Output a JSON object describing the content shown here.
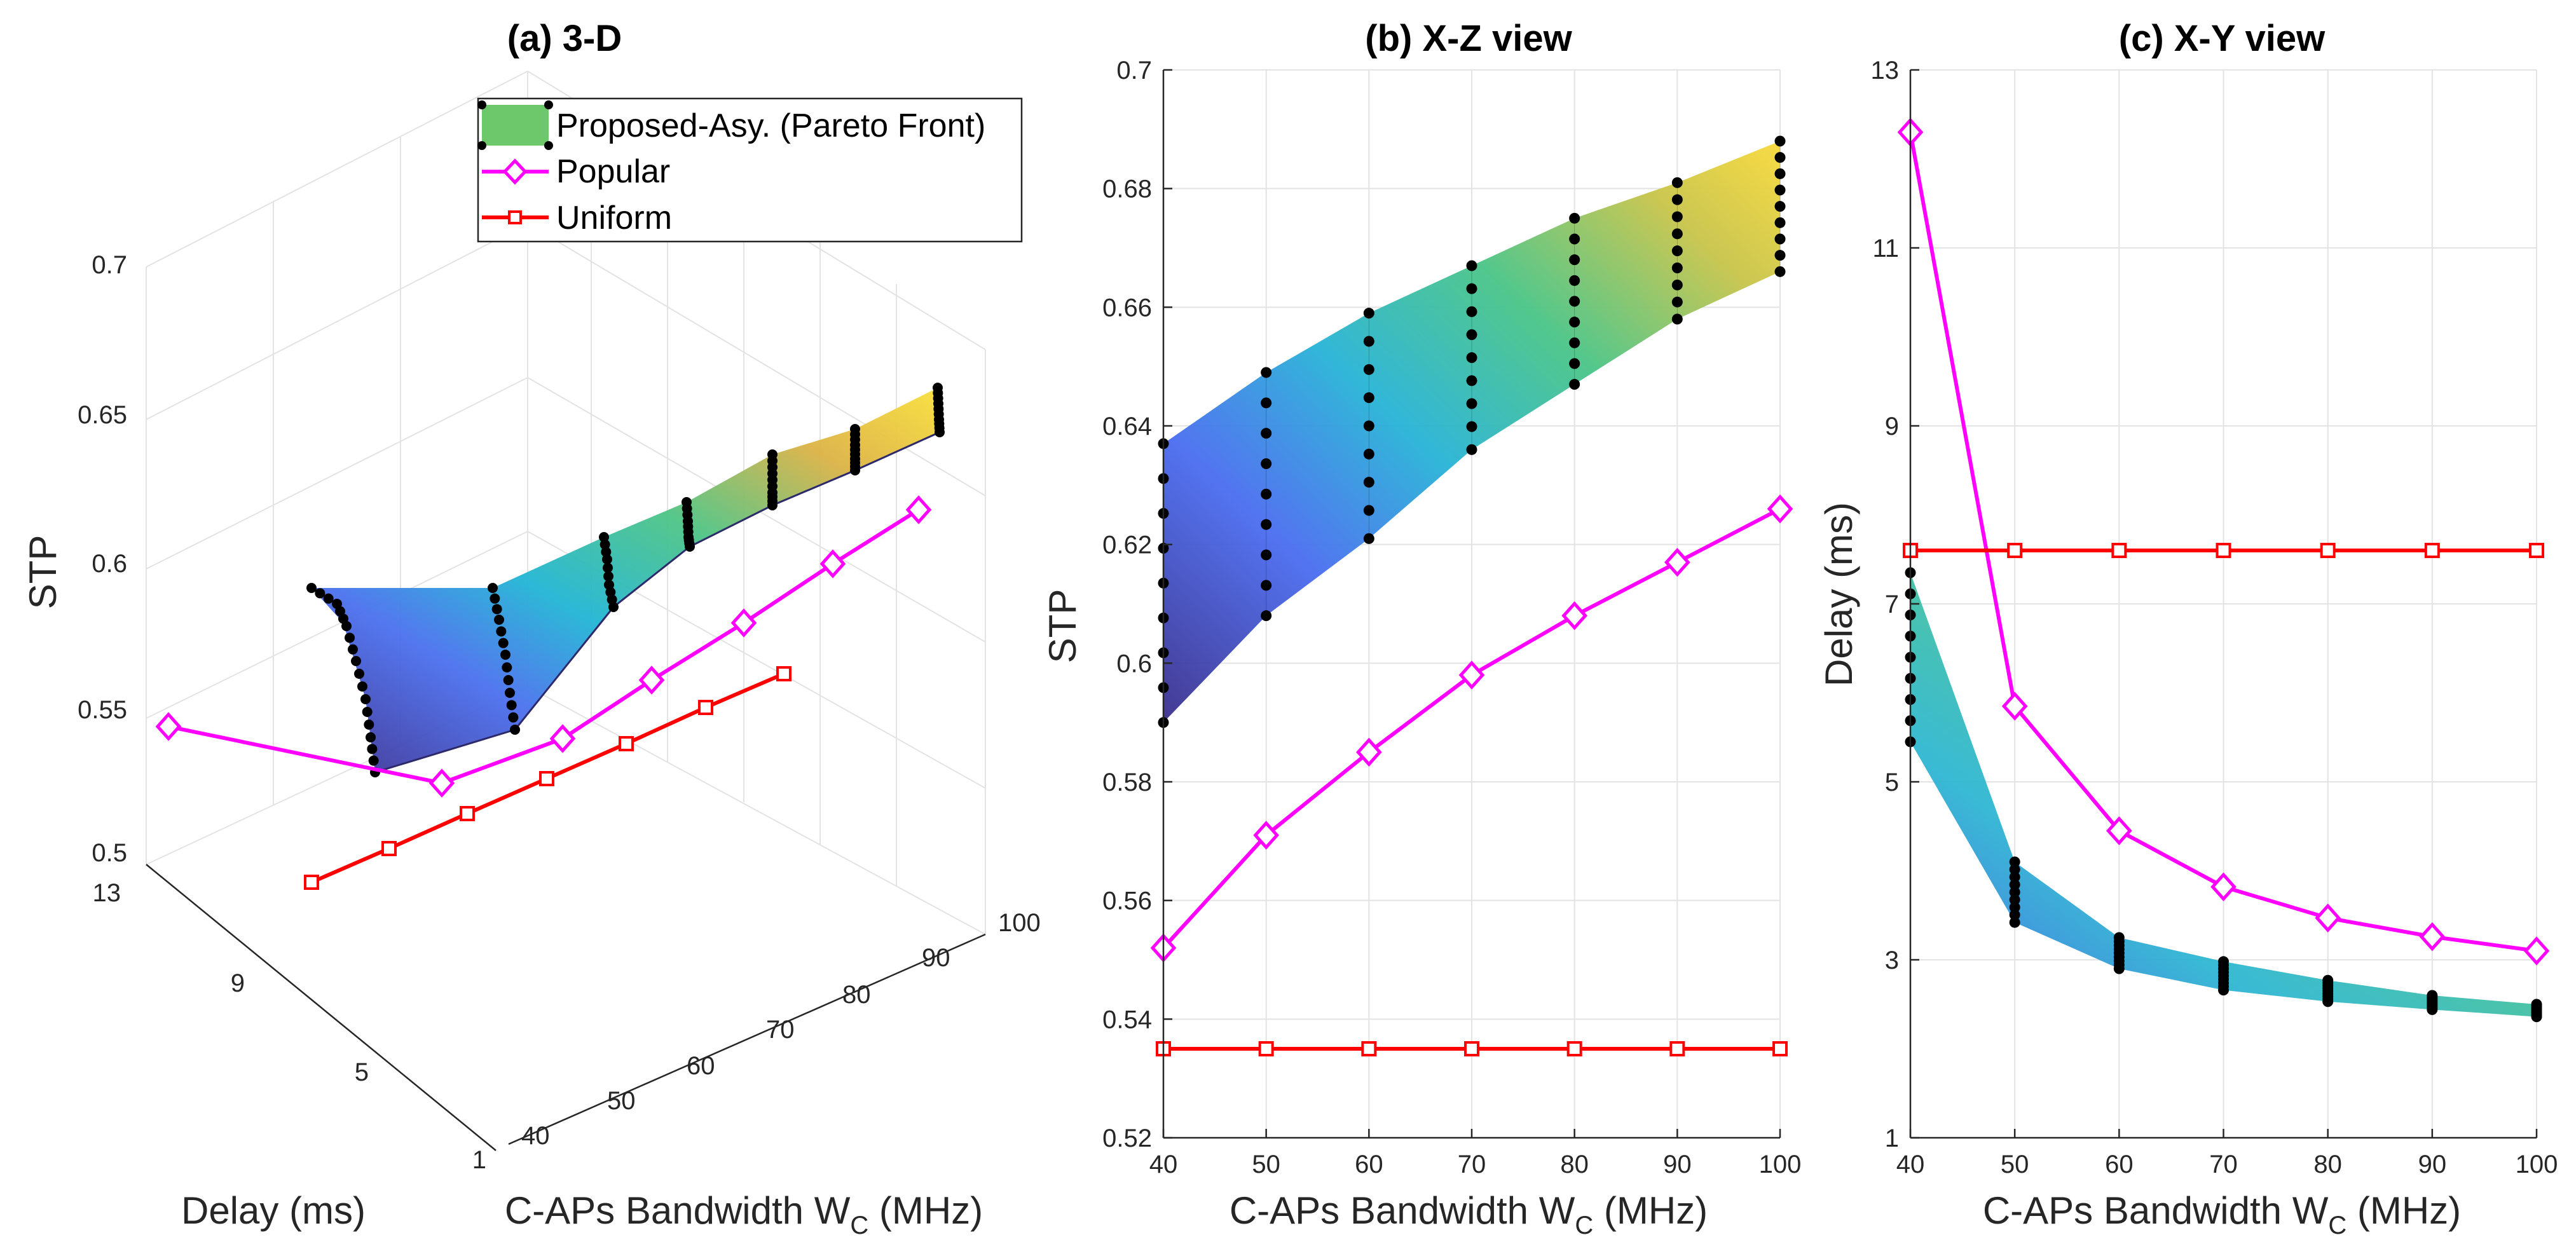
{
  "chart_data": [
    {
      "type": "surface3d",
      "title": "(a) 3-D",
      "xlabel": "C-APs Bandwidth W_C (MHz)",
      "ylabel": "Delay (ms)",
      "zlabel": "STP",
      "xticks": [
        "40",
        "50",
        "60",
        "70",
        "80",
        "90",
        "100"
      ],
      "yticks": [
        "1",
        "5",
        "9",
        "13"
      ],
      "zticks": [
        "0.5",
        "0.55",
        "0.6",
        "0.65",
        "0.7"
      ],
      "xlim": [
        40,
        100
      ],
      "ylim": [
        1,
        13
      ],
      "zlim": [
        0.5,
        0.7
      ],
      "legend": {
        "position": "top-center",
        "entries": [
          {
            "label": "Proposed-Asy. (Pareto Front)",
            "color": "#6cc86a"
          },
          {
            "label": "Popular",
            "color": "#ff00ff"
          },
          {
            "label": "Uniform",
            "color": "#ff0000"
          }
        ]
      }
    },
    {
      "type": "line",
      "title": "(b) X-Z view",
      "xlabel": "C-APs Bandwidth W_C (MHz)",
      "ylabel": "STP",
      "x": [
        40,
        50,
        60,
        70,
        80,
        90,
        100
      ],
      "xlim": [
        40,
        100
      ],
      "ylim": [
        0.52,
        0.7
      ],
      "xticks": [
        "40",
        "50",
        "60",
        "70",
        "80",
        "90",
        "100"
      ],
      "yticks": [
        "0.52",
        "0.54",
        "0.56",
        "0.58",
        "0.6",
        "0.62",
        "0.64",
        "0.66",
        "0.68",
        "0.7"
      ],
      "front": {
        "name": "Proposed-Asy. (Pareto Front)",
        "lower": [
          0.59,
          0.608,
          0.621,
          0.636,
          0.647,
          0.658,
          0.666
        ],
        "upper": [
          0.637,
          0.649,
          0.659,
          0.667,
          0.675,
          0.681,
          0.688
        ]
      },
      "series": [
        {
          "name": "Popular",
          "color": "#ff00ff",
          "marker": "diamond",
          "values": [
            0.552,
            0.571,
            0.585,
            0.598,
            0.608,
            0.617,
            0.626
          ]
        },
        {
          "name": "Uniform",
          "color": "#ff0000",
          "marker": "square",
          "values": [
            0.535,
            0.535,
            0.535,
            0.535,
            0.535,
            0.535,
            0.535
          ]
        }
      ]
    },
    {
      "type": "line",
      "title": "(c) X-Y view",
      "xlabel": "C-APs Bandwidth W_C (MHz)",
      "ylabel": "Delay (ms)",
      "x": [
        40,
        50,
        60,
        70,
        80,
        90,
        100
      ],
      "xlim": [
        40,
        100
      ],
      "ylim": [
        1,
        13
      ],
      "xticks": [
        "40",
        "50",
        "60",
        "70",
        "80",
        "90",
        "100"
      ],
      "yticks": [
        "1",
        "3",
        "5",
        "7",
        "9",
        "11",
        "13"
      ],
      "front": {
        "name": "Proposed-Asy. (Pareto Front)",
        "lower": [
          5.45,
          3.42,
          2.9,
          2.66,
          2.53,
          2.44,
          2.36
        ],
        "upper": [
          7.35,
          4.1,
          3.25,
          2.98,
          2.77,
          2.6,
          2.5
        ]
      },
      "series": [
        {
          "name": "Popular",
          "color": "#ff00ff",
          "marker": "diamond",
          "values": [
            12.3,
            5.85,
            4.45,
            3.82,
            3.47,
            3.26,
            3.1
          ]
        },
        {
          "name": "Uniform",
          "color": "#ff0000",
          "marker": "square",
          "values": [
            7.6,
            7.6,
            7.6,
            7.6,
            7.6,
            7.6,
            7.6
          ]
        }
      ]
    }
  ]
}
